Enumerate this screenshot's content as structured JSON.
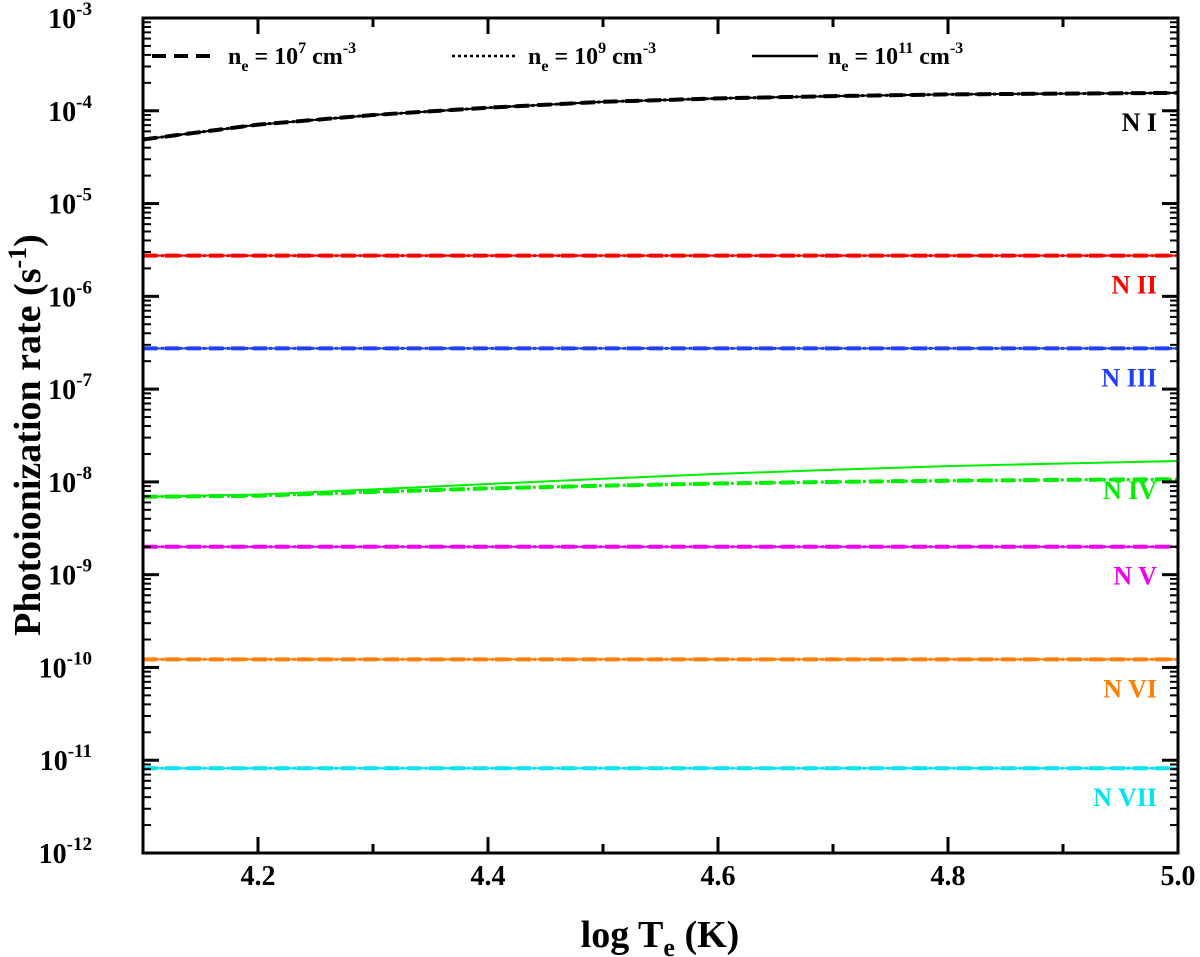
{
  "chart_data": {
    "type": "line",
    "title": "",
    "xlabel": {
      "main": "log T",
      "sub": "e",
      "tail": " (K)"
    },
    "ylabel": {
      "main": "Photoionization rate (s",
      "sup": "-1",
      "tail": ")"
    },
    "xlim": [
      4.1,
      5.0
    ],
    "ylim": [
      1e-12,
      0.001
    ],
    "yscale": "log",
    "grid": false,
    "legend_placement": "top",
    "x_ticks": [
      "4.2",
      "4.4",
      "4.6",
      "4.8",
      "5.0"
    ],
    "y_ticks": [
      {
        "base": "10",
        "exp": "-3"
      },
      {
        "base": "10",
        "exp": "-4"
      },
      {
        "base": "10",
        "exp": "-5"
      },
      {
        "base": "10",
        "exp": "-6"
      },
      {
        "base": "10",
        "exp": "-7"
      },
      {
        "base": "10",
        "exp": "-8"
      },
      {
        "base": "10",
        "exp": "-9"
      },
      {
        "base": "10",
        "exp": "-10"
      },
      {
        "base": "10",
        "exp": "-11"
      },
      {
        "base": "10",
        "exp": "-12"
      }
    ],
    "legend": [
      {
        "style": "dashed",
        "n": "n",
        "sub": "e",
        "eq": " = 10",
        "exp": "7",
        "unit": " cm",
        "unit_exp": "-3"
      },
      {
        "style": "dotted",
        "n": "n",
        "sub": "e",
        "eq": " = 10",
        "exp": "9",
        "unit": " cm",
        "unit_exp": "-3"
      },
      {
        "style": "solid",
        "n": "n",
        "sub": "e",
        "eq": " = 10",
        "exp": "11",
        "unit": " cm",
        "unit_exp": "-3"
      }
    ],
    "x": [
      4.1,
      4.2,
      4.3,
      4.4,
      4.5,
      4.6,
      4.7,
      4.8,
      4.9,
      5.0
    ],
    "ions": [
      {
        "label": "N I",
        "color": "#000000",
        "ne_1e7": [
          4.9e-05,
          7.1e-05,
          9e-05,
          0.000108,
          0.000125,
          0.000136,
          0.000144,
          0.00015,
          0.000153,
          0.000156
        ],
        "ne_1e9": [
          4.9e-05,
          7.1e-05,
          9e-05,
          0.000108,
          0.000125,
          0.000136,
          0.000144,
          0.00015,
          0.000153,
          0.000156
        ],
        "ne_1e11": [
          4.9e-05,
          7.1e-05,
          9e-05,
          0.000108,
          0.000125,
          0.000136,
          0.000144,
          0.00015,
          0.000153,
          0.000156
        ]
      },
      {
        "label": "N II",
        "color": "#ff0000",
        "ne_1e7": [
          2.75e-06,
          2.75e-06,
          2.75e-06,
          2.75e-06,
          2.75e-06,
          2.75e-06,
          2.75e-06,
          2.75e-06,
          2.75e-06,
          2.75e-06
        ],
        "ne_1e9": [
          2.75e-06,
          2.75e-06,
          2.75e-06,
          2.75e-06,
          2.75e-06,
          2.75e-06,
          2.75e-06,
          2.75e-06,
          2.75e-06,
          2.75e-06
        ],
        "ne_1e11": [
          2.75e-06,
          2.75e-06,
          2.75e-06,
          2.75e-06,
          2.75e-06,
          2.75e-06,
          2.75e-06,
          2.75e-06,
          2.75e-06,
          2.75e-06
        ]
      },
      {
        "label": "N III",
        "color": "#2040ff",
        "ne_1e7": [
          2.75e-07,
          2.75e-07,
          2.75e-07,
          2.75e-07,
          2.75e-07,
          2.75e-07,
          2.75e-07,
          2.75e-07,
          2.75e-07,
          2.75e-07
        ],
        "ne_1e9": [
          2.75e-07,
          2.75e-07,
          2.75e-07,
          2.75e-07,
          2.75e-07,
          2.75e-07,
          2.75e-07,
          2.75e-07,
          2.75e-07,
          2.75e-07
        ],
        "ne_1e11": [
          2.75e-07,
          2.75e-07,
          2.75e-07,
          2.75e-07,
          2.75e-07,
          2.75e-07,
          2.75e-07,
          2.75e-07,
          2.75e-07,
          2.75e-07
        ]
      },
      {
        "label": "N IV",
        "color": "#00ee00",
        "ne_1e7": [
          6.9e-09,
          7.1e-09,
          7.8e-09,
          8.5e-09,
          9.1e-09,
          9.6e-09,
          1e-08,
          1.03e-08,
          1.05e-08,
          1.07e-08
        ],
        "ne_1e9": [
          6.9e-09,
          7.1e-09,
          7.8e-09,
          8.5e-09,
          9.1e-09,
          9.6e-09,
          1e-08,
          1.03e-08,
          1.05e-08,
          1.07e-08
        ],
        "ne_1e11": [
          6.9e-09,
          7.3e-09,
          8.3e-09,
          9.5e-09,
          1.08e-08,
          1.22e-08,
          1.35e-08,
          1.48e-08,
          1.58e-08,
          1.68e-08
        ]
      },
      {
        "label": "N V",
        "color": "#ee00ee",
        "ne_1e7": [
          2e-09,
          2e-09,
          2e-09,
          2e-09,
          2e-09,
          2e-09,
          2e-09,
          2e-09,
          2e-09,
          2e-09
        ],
        "ne_1e9": [
          2e-09,
          2e-09,
          2e-09,
          2e-09,
          2e-09,
          2e-09,
          2e-09,
          2e-09,
          2e-09,
          2e-09
        ],
        "ne_1e11": [
          2e-09,
          2e-09,
          2e-09,
          2e-09,
          2e-09,
          2e-09,
          2e-09,
          2e-09,
          2e-09,
          2e-09
        ]
      },
      {
        "label": "N VI",
        "color": "#ff8000",
        "ne_1e7": [
          1.22e-10,
          1.22e-10,
          1.22e-10,
          1.22e-10,
          1.22e-10,
          1.22e-10,
          1.22e-10,
          1.22e-10,
          1.22e-10,
          1.22e-10
        ],
        "ne_1e9": [
          1.22e-10,
          1.22e-10,
          1.22e-10,
          1.22e-10,
          1.22e-10,
          1.22e-10,
          1.22e-10,
          1.22e-10,
          1.22e-10,
          1.22e-10
        ],
        "ne_1e11": [
          1.22e-10,
          1.22e-10,
          1.22e-10,
          1.22e-10,
          1.22e-10,
          1.22e-10,
          1.22e-10,
          1.22e-10,
          1.22e-10,
          1.22e-10
        ]
      },
      {
        "label": "N VII",
        "color": "#00e5ee",
        "ne_1e7": [
          8.2e-12,
          8.2e-12,
          8.2e-12,
          8.2e-12,
          8.2e-12,
          8.2e-12,
          8.2e-12,
          8.2e-12,
          8.2e-12,
          8.2e-12
        ],
        "ne_1e9": [
          8.2e-12,
          8.2e-12,
          8.2e-12,
          8.2e-12,
          8.2e-12,
          8.2e-12,
          8.2e-12,
          8.2e-12,
          8.2e-12,
          8.2e-12
        ],
        "ne_1e11": [
          8.2e-12,
          8.2e-12,
          8.2e-12,
          8.2e-12,
          8.2e-12,
          8.2e-12,
          8.2e-12,
          8.2e-12,
          8.2e-12,
          8.2e-12
        ]
      }
    ]
  }
}
